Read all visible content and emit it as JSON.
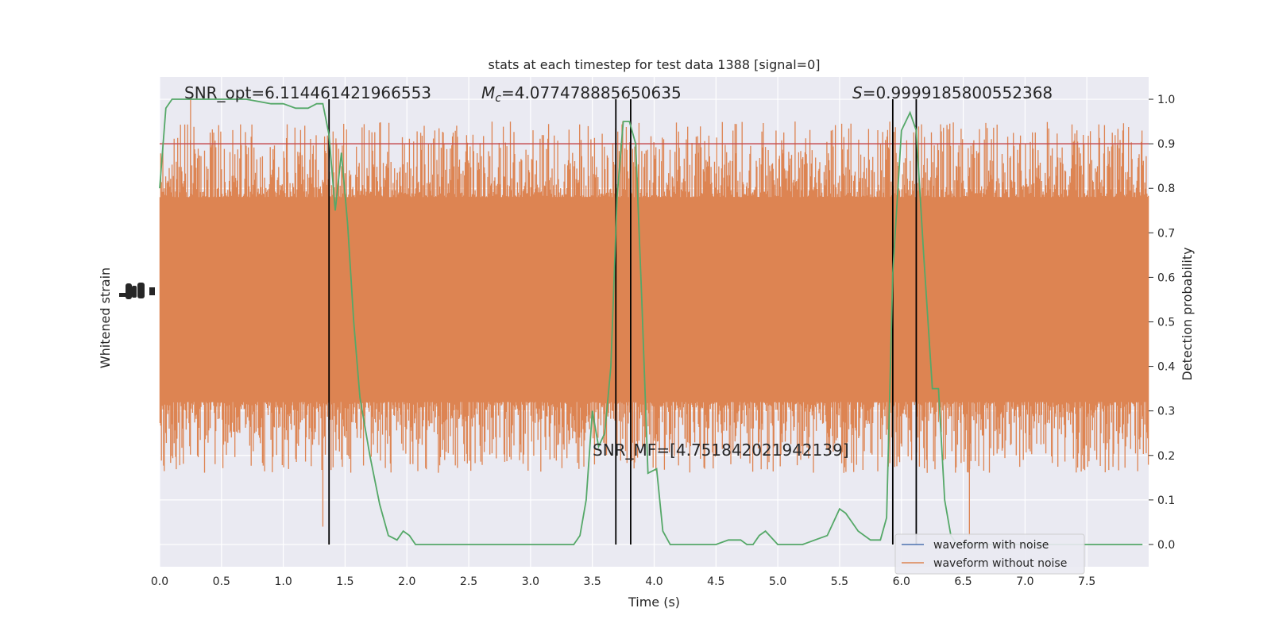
{
  "chart_data": {
    "type": "line",
    "title": "stats at each timestep for test data 1388 [signal=0]",
    "xlabel": "Time (s)",
    "ylabel_left": "Whitened strain",
    "ylabel_right": "Detection probability",
    "xlim": [
      0,
      8
    ],
    "ylim_right": [
      -0.05,
      1.05
    ],
    "x_ticks": [
      "0.0",
      "0.5",
      "1.0",
      "1.5",
      "2.0",
      "2.5",
      "3.0",
      "3.5",
      "4.0",
      "4.5",
      "5.0",
      "5.5",
      "6.0",
      "6.5",
      "7.0",
      "7.5"
    ],
    "y_ticks_right": [
      "0.0",
      "0.1",
      "0.2",
      "0.3",
      "0.4",
      "0.5",
      "0.6",
      "0.7",
      "0.8",
      "0.9",
      "1.0"
    ],
    "grid": true,
    "threshold": 0.9,
    "vertical_lines_x": [
      1.37,
      3.69,
      3.81,
      5.93,
      6.12
    ],
    "annotations": {
      "snr_opt": "SNR_opt=6.114461421966553",
      "mc": "=4.077478885650635",
      "mc_symbol": "M",
      "mc_sub": "c",
      "s": "=0.9999185800552368",
      "s_symbol": "S",
      "snr_mf": "SNR_MF=[4.751842021942139]"
    },
    "series": [
      {
        "name": "waveform with noise",
        "color": "#4c72b0",
        "x": [
          0,
          8
        ],
        "y": [
          0,
          0
        ]
      },
      {
        "name": "waveform without noise",
        "color": "#dd8452",
        "x": [
          0,
          8
        ],
        "y": [
          0.55,
          0.55
        ],
        "envelope": [
          0.32,
          0.78
        ]
      },
      {
        "color": "#55a868",
        "x": [
          0.0,
          0.05,
          0.1,
          0.2,
          0.3,
          0.5,
          0.7,
          0.9,
          1.0,
          1.1,
          1.2,
          1.27,
          1.32,
          1.37,
          1.42,
          1.47,
          1.52,
          1.57,
          1.62,
          1.7,
          1.78,
          1.85,
          1.92,
          1.97,
          2.02,
          2.07,
          2.15,
          2.3,
          2.5,
          2.8,
          3.0,
          3.2,
          3.35,
          3.4,
          3.45,
          3.5,
          3.55,
          3.6,
          3.65,
          3.7,
          3.75,
          3.8,
          3.85,
          3.9,
          3.95,
          4.02,
          4.07,
          4.13,
          4.2,
          4.3,
          4.5,
          4.6,
          4.7,
          4.75,
          4.8,
          4.85,
          4.9,
          5.0,
          5.2,
          5.3,
          5.4,
          5.45,
          5.5,
          5.55,
          5.6,
          5.65,
          5.75,
          5.83,
          5.88,
          5.93,
          6.0,
          6.07,
          6.12,
          6.18,
          6.25,
          6.3,
          6.35,
          6.4,
          6.45,
          6.6,
          7.0,
          7.5,
          7.95
        ],
        "y": [
          0.8,
          0.98,
          1.0,
          1.0,
          1.0,
          1.0,
          1.0,
          0.99,
          0.99,
          0.98,
          0.98,
          0.99,
          0.99,
          0.92,
          0.75,
          0.88,
          0.72,
          0.5,
          0.33,
          0.2,
          0.09,
          0.02,
          0.01,
          0.03,
          0.02,
          0.0,
          0.0,
          0.0,
          0.0,
          0.0,
          0.0,
          0.0,
          0.0,
          0.02,
          0.1,
          0.3,
          0.22,
          0.25,
          0.4,
          0.78,
          0.95,
          0.95,
          0.9,
          0.55,
          0.16,
          0.17,
          0.03,
          0.0,
          0.0,
          0.0,
          0.0,
          0.01,
          0.01,
          0.0,
          0.0,
          0.02,
          0.03,
          0.0,
          0.0,
          0.01,
          0.02,
          0.05,
          0.08,
          0.07,
          0.05,
          0.03,
          0.01,
          0.01,
          0.06,
          0.61,
          0.93,
          0.97,
          0.93,
          0.65,
          0.35,
          0.35,
          0.1,
          0.02,
          0.0,
          0.0,
          0.0,
          0.0,
          0.0
        ]
      }
    ],
    "legend_position": "lower-right"
  }
}
